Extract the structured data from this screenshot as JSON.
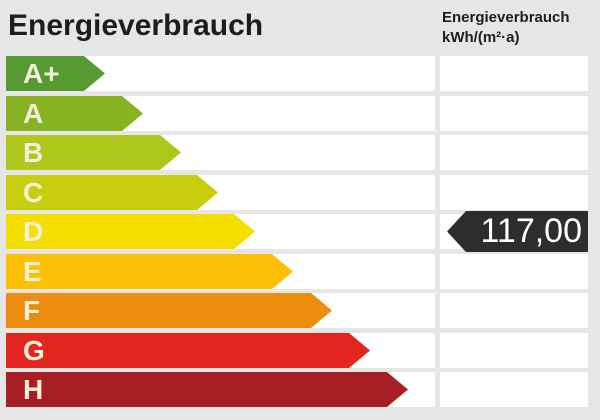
{
  "header": {
    "title": "Energieverbrauch",
    "unit_label_line1": "Energieverbrauch",
    "unit_label_line2": "kWh/(m²·a)"
  },
  "scale": {
    "grades": [
      {
        "label": "A+",
        "color": "#569a31"
      },
      {
        "label": "A",
        "color": "#87b222"
      },
      {
        "label": "B",
        "color": "#adc71d"
      },
      {
        "label": "C",
        "color": "#c8ce0e"
      },
      {
        "label": "D",
        "color": "#f6de00"
      },
      {
        "label": "E",
        "color": "#fcc106"
      },
      {
        "label": "F",
        "color": "#ec8d0f"
      },
      {
        "label": "G",
        "color": "#e2251f"
      },
      {
        "label": "H",
        "color": "#a71e24"
      }
    ],
    "label_text_color": "#f3f0da"
  },
  "value": {
    "text": "117,00",
    "grade": "D",
    "tag_color": "#2d2d2d",
    "text_color": "#ffffff"
  },
  "colors": {
    "background": "#e6e6e6",
    "row_band": "#ffffff",
    "title_text": "#1d1d1b"
  },
  "chart_data": {
    "type": "bar",
    "title": "Energieverbrauch",
    "ylabel": "Energieverbrauch kWh/(m²·a)",
    "categories": [
      "A+",
      "A",
      "B",
      "C",
      "D",
      "E",
      "F",
      "G",
      "H"
    ],
    "series": [
      {
        "name": "grade-arrow-relative-length",
        "values": [
          1,
          2,
          3,
          4,
          5,
          6,
          7,
          8,
          9
        ]
      }
    ],
    "marker": {
      "value": 117.0,
      "display": "117,00",
      "grade": "D",
      "unit": "kWh/(m²·a)"
    },
    "legend_position": "none",
    "grid": false,
    "orientation": "horizontal"
  }
}
